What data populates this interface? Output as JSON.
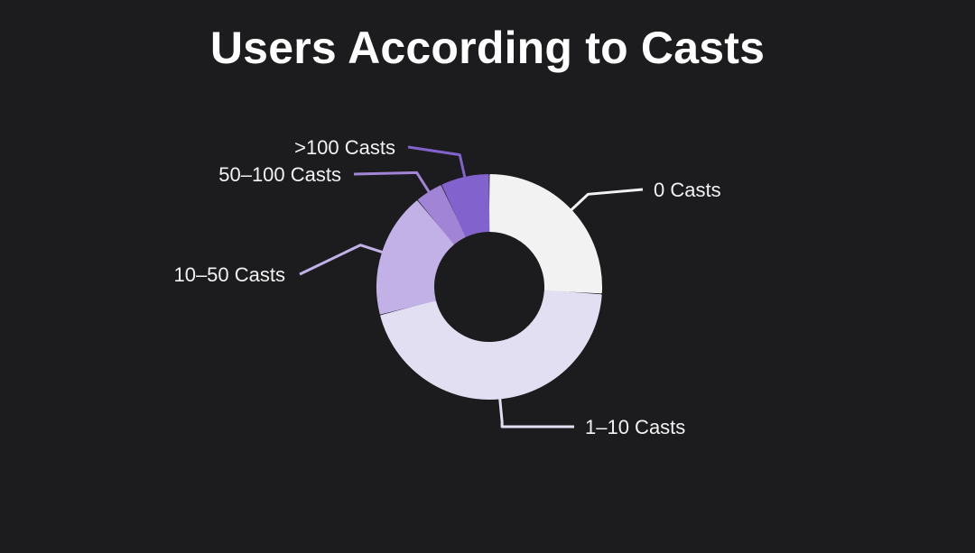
{
  "chart_data": {
    "type": "pie",
    "title": "Users According to Casts",
    "categories": [
      "0 Casts",
      "1–10 Casts",
      "10–50 Casts",
      "50–100 Casts",
      ">100 Casts"
    ],
    "values": [
      26,
      45,
      18,
      4,
      7
    ],
    "unit": "%",
    "slice_colors": [
      "#f2f2f2",
      "#e3dff3",
      "#c1b1e6",
      "#a284d6",
      "#8262cc"
    ],
    "legend": "none",
    "grid": false
  }
}
